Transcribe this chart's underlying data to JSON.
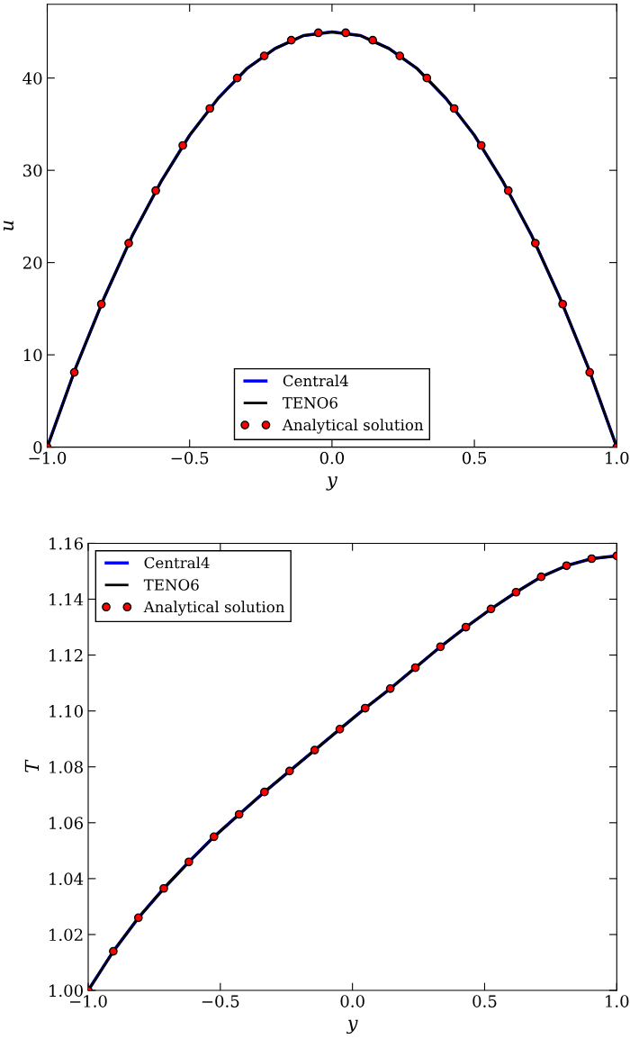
{
  "chart_data": [
    {
      "type": "line",
      "xlabel": "y",
      "ylabel": "u",
      "legend": "bottom",
      "xlim": [
        -1.0,
        1.0
      ],
      "xticks": [
        {
          "value": -1.0,
          "label": "−1.0"
        },
        {
          "value": -0.5,
          "label": "−0.5"
        },
        {
          "value": 0.0,
          "label": "0.0"
        },
        {
          "value": 0.5,
          "label": "0.5"
        },
        {
          "value": 1.0,
          "label": "1.0"
        }
      ],
      "ylim": [
        0,
        48
      ],
      "yticks": [
        0,
        10,
        20,
        30,
        40
      ],
      "series": [
        {
          "name": "Central4",
          "color": "#0000ff",
          "type": "line",
          "marker": "none",
          "x": [
            -1.0,
            -0.9,
            -0.8,
            -0.7,
            -0.6,
            -0.5,
            -0.4,
            -0.3,
            -0.2,
            -0.1,
            0.0,
            0.1,
            0.2,
            0.3,
            0.4,
            0.5,
            0.6,
            0.7,
            0.8,
            0.9,
            1.0
          ],
          "values": [
            0,
            8.6,
            16.2,
            23.0,
            28.8,
            33.8,
            37.8,
            41.0,
            43.2,
            44.6,
            45,
            44.6,
            43.2,
            41.0,
            37.8,
            33.8,
            28.8,
            23.0,
            16.2,
            8.6,
            0
          ]
        },
        {
          "name": "TENO6",
          "color": "#000000",
          "type": "line",
          "marker": "none",
          "x": [
            -1.0,
            -0.9,
            -0.8,
            -0.7,
            -0.6,
            -0.5,
            -0.4,
            -0.3,
            -0.2,
            -0.1,
            0.0,
            0.1,
            0.2,
            0.3,
            0.4,
            0.5,
            0.6,
            0.7,
            0.8,
            0.9,
            1.0
          ],
          "values": [
            0,
            8.6,
            16.2,
            23.0,
            28.8,
            33.8,
            37.8,
            41.0,
            43.2,
            44.6,
            45,
            44.6,
            43.2,
            41.0,
            37.8,
            33.8,
            28.8,
            23.0,
            16.2,
            8.6,
            0
          ]
        },
        {
          "name": "Analytical solution",
          "color": "#ff0000",
          "type": "scatter",
          "marker": "circle",
          "x": [
            -1.0,
            -0.905,
            -0.81,
            -0.714,
            -0.619,
            -0.524,
            -0.429,
            -0.333,
            -0.238,
            -0.143,
            -0.048,
            0.048,
            0.143,
            0.238,
            0.333,
            0.429,
            0.524,
            0.619,
            0.714,
            0.81,
            0.905,
            1.0
          ],
          "values": [
            0,
            8.1,
            15.5,
            22.1,
            27.8,
            32.7,
            36.7,
            40.0,
            42.4,
            44.1,
            44.9,
            44.9,
            44.1,
            42.4,
            40.0,
            36.7,
            32.7,
            27.8,
            22.1,
            15.5,
            8.1,
            0
          ]
        }
      ]
    },
    {
      "type": "line",
      "xlabel": "y",
      "ylabel": "T",
      "legend": "top left",
      "xlim": [
        -1.0,
        1.0
      ],
      "xticks": [
        {
          "value": -1.0,
          "label": "−1.0"
        },
        {
          "value": -0.5,
          "label": "−0.5"
        },
        {
          "value": 0.0,
          "label": "0.0"
        },
        {
          "value": 0.5,
          "label": "0.5"
        },
        {
          "value": 1.0,
          "label": "1.0"
        }
      ],
      "ylim": [
        1.0,
        1.16
      ],
      "yticks": [
        {
          "value": 1.0,
          "label": "1.00"
        },
        {
          "value": 1.02,
          "label": "1.02"
        },
        {
          "value": 1.04,
          "label": "1.04"
        },
        {
          "value": 1.06,
          "label": "1.06"
        },
        {
          "value": 1.08,
          "label": "1.08"
        },
        {
          "value": 1.1,
          "label": "1.10"
        },
        {
          "value": 1.12,
          "label": "1.12"
        },
        {
          "value": 1.14,
          "label": "1.14"
        },
        {
          "value": 1.16,
          "label": "1.16"
        }
      ],
      "series": [
        {
          "name": "Central4",
          "color": "#0000ff",
          "type": "line",
          "marker": "none",
          "x": [
            -1.0,
            -0.905,
            -0.81,
            -0.714,
            -0.619,
            -0.524,
            -0.429,
            -0.333,
            -0.238,
            -0.143,
            -0.048,
            0.048,
            0.143,
            0.238,
            0.333,
            0.429,
            0.524,
            0.619,
            0.714,
            0.81,
            0.905,
            1.0
          ],
          "values": [
            1.0,
            1.014,
            1.026,
            1.0365,
            1.046,
            1.055,
            1.063,
            1.071,
            1.0785,
            1.086,
            1.0935,
            1.101,
            1.108,
            1.1155,
            1.123,
            1.13,
            1.1365,
            1.1425,
            1.148,
            1.152,
            1.1545,
            1.1555
          ]
        },
        {
          "name": "TENO6",
          "color": "#000000",
          "type": "line",
          "marker": "none",
          "x": [
            -1.0,
            -0.905,
            -0.81,
            -0.714,
            -0.619,
            -0.524,
            -0.429,
            -0.333,
            -0.238,
            -0.143,
            -0.048,
            0.048,
            0.143,
            0.238,
            0.333,
            0.429,
            0.524,
            0.619,
            0.714,
            0.81,
            0.905,
            1.0
          ],
          "values": [
            1.0,
            1.014,
            1.026,
            1.0365,
            1.046,
            1.055,
            1.063,
            1.071,
            1.0785,
            1.086,
            1.0935,
            1.101,
            1.108,
            1.1155,
            1.123,
            1.13,
            1.1365,
            1.1425,
            1.148,
            1.152,
            1.1545,
            1.1555
          ]
        },
        {
          "name": "Analytical solution",
          "color": "#ff0000",
          "type": "scatter",
          "marker": "circle",
          "x": [
            -1.0,
            -0.905,
            -0.81,
            -0.714,
            -0.619,
            -0.524,
            -0.429,
            -0.333,
            -0.238,
            -0.143,
            -0.048,
            0.048,
            0.143,
            0.238,
            0.333,
            0.429,
            0.524,
            0.619,
            0.714,
            0.81,
            0.905,
            1.0
          ],
          "values": [
            1.0,
            1.014,
            1.026,
            1.0365,
            1.046,
            1.055,
            1.063,
            1.071,
            1.0785,
            1.086,
            1.0935,
            1.101,
            1.108,
            1.1155,
            1.123,
            1.13,
            1.1365,
            1.1425,
            1.148,
            1.152,
            1.1545,
            1.1555
          ]
        }
      ]
    }
  ]
}
